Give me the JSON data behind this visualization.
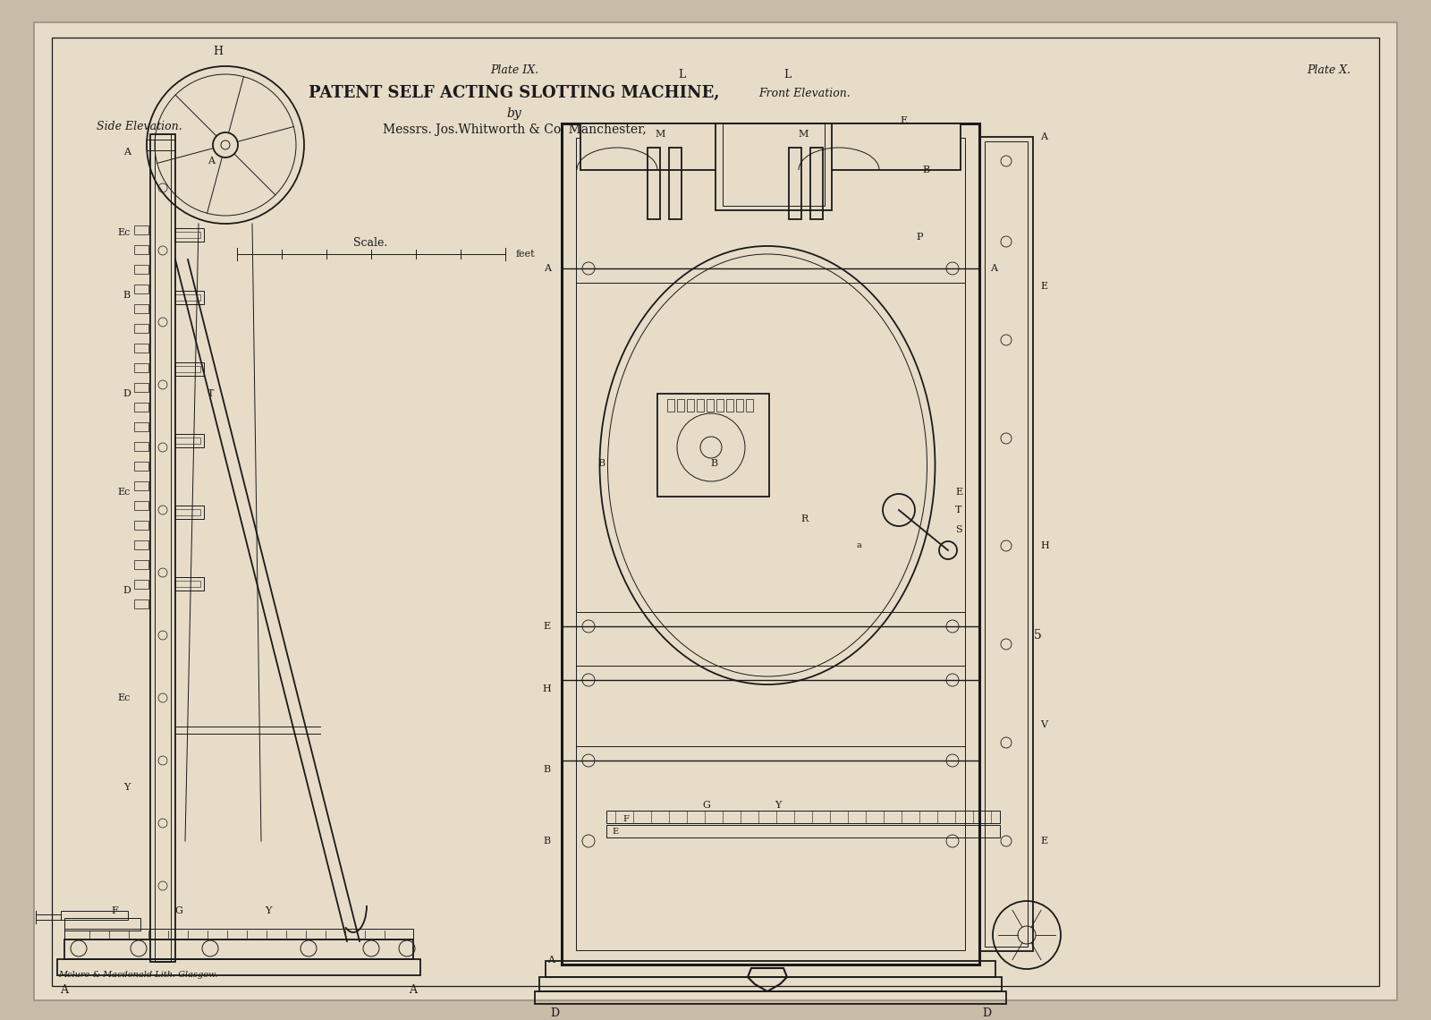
{
  "bg_color": "#c8bba8",
  "paper_color": "#e6dcc8",
  "line_color": "#1a1a1a",
  "fig_width": 16.0,
  "fig_height": 11.4,
  "title_line1": "PATENT SELF ACTING SLOTTING MACHINE,",
  "title_line2": "by",
  "title_line3": "Messrs. Jos.Whitworth & Co. Manchester,",
  "plate_ix": "Plate IX.",
  "plate_x": "Plate X.",
  "side_elevation": "Side Elevation.",
  "front_elevation": "Front Elevation.",
  "scale_label": "Scale.",
  "printer": "Mclure & Macdonald Lith. Glasgow."
}
